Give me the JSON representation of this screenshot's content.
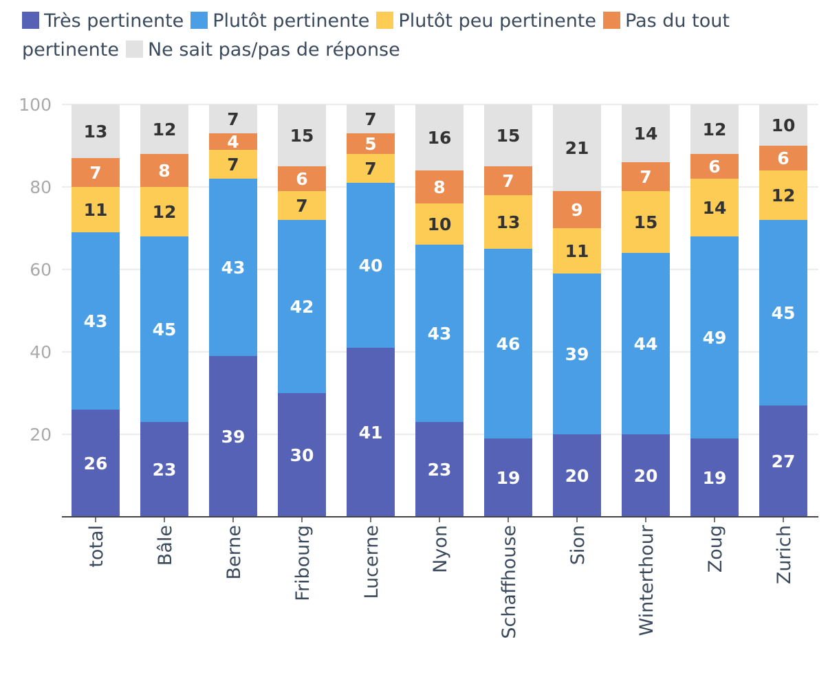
{
  "chart_data": {
    "type": "bar",
    "stacked": true,
    "title": "",
    "xlabel": "",
    "ylabel": "",
    "ylim": [
      0,
      100
    ],
    "yticks": [
      20,
      40,
      60,
      80,
      100
    ],
    "grid": true,
    "legend_position": "top",
    "categories": [
      "total",
      "Bâle",
      "Berne",
      "Fribourg",
      "Lucerne",
      "Nyon",
      "Schaffhouse",
      "Sion",
      "Winterthour",
      "Zoug",
      "Zurich"
    ],
    "series": [
      {
        "name": "Très pertinente",
        "color": "#5562b5",
        "label_color": "#ffffff",
        "values": [
          26,
          23,
          39,
          30,
          41,
          23,
          19,
          20,
          20,
          19,
          27
        ]
      },
      {
        "name": "Plutôt pertinente",
        "color": "#499ee6",
        "label_color": "#ffffff",
        "values": [
          43,
          45,
          43,
          42,
          40,
          43,
          46,
          39,
          44,
          49,
          45
        ]
      },
      {
        "name": "Plutôt peu pertinente",
        "color": "#fccc55",
        "label_color": "#333333",
        "values": [
          11,
          12,
          7,
          7,
          7,
          10,
          13,
          11,
          15,
          14,
          12
        ]
      },
      {
        "name": "Pas du tout pertinente",
        "color": "#ec8b50",
        "label_color": "#ffffff",
        "values": [
          7,
          8,
          4,
          6,
          5,
          8,
          7,
          9,
          7,
          6,
          6
        ]
      },
      {
        "name": "Ne sait pas/pas de réponse",
        "color": "#e2e2e2",
        "label_color": "#333333",
        "values": [
          13,
          12,
          7,
          15,
          7,
          16,
          15,
          21,
          14,
          12,
          10
        ]
      }
    ]
  }
}
